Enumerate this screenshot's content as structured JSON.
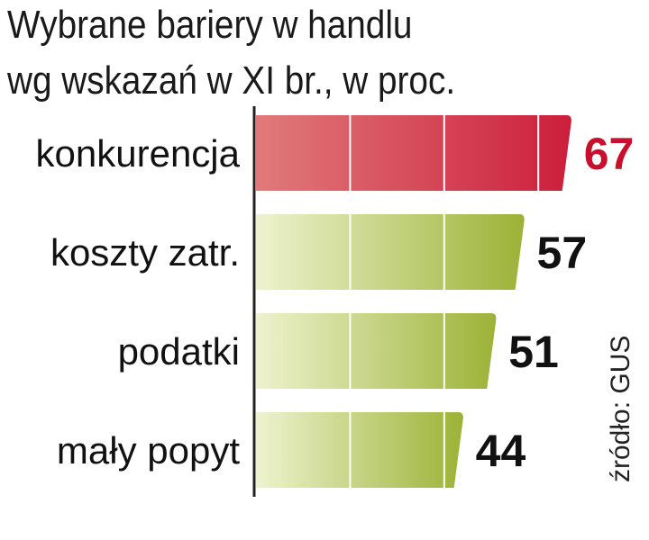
{
  "title_lines": [
    "Wybrane bariery w handlu",
    "wg wskazań w XI br., w proc."
  ],
  "source": "źródło: GUS",
  "colors": {
    "highlight_start": "#e07a7a",
    "highlight_end": "#cc1e3c",
    "bar_start": "#eef3cf",
    "bar_end": "#9cb236",
    "highlight_value": "#c8102e",
    "value": "#111111",
    "axis": "#222222",
    "grid": "#ffffff"
  },
  "chart_data": {
    "type": "bar",
    "orientation": "horizontal",
    "title": "Wybrane bariery w handlu wg wskazań w XI br., w proc.",
    "categories": [
      "konkurencja",
      "koszty zatr.",
      "podatki",
      "mały popyt"
    ],
    "values": [
      67,
      57,
      51,
      44
    ],
    "highlight_index": 0,
    "xlim": [
      0,
      70
    ],
    "gridlines": [
      20,
      40,
      60
    ],
    "data_labels": true,
    "grid": true
  }
}
